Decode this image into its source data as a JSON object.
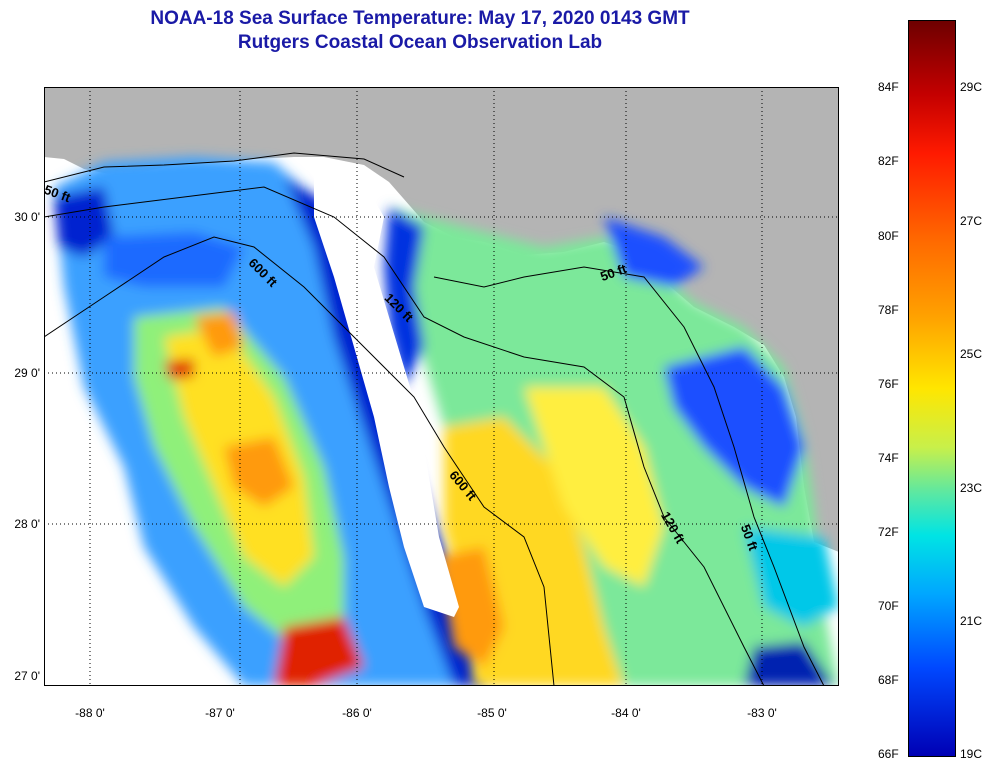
{
  "title": "NOAA-18 Sea Surface Temperature:  May 17, 2020 0143 GMT",
  "subtitle": "Rutgers Coastal Ocean Observation Lab",
  "map": {
    "lat_labels": [
      {
        "text": "30 0'",
        "value": 30
      },
      {
        "text": "29 0'",
        "value": 29
      },
      {
        "text": "28 0'",
        "value": 28
      },
      {
        "text": "27 0'",
        "value": 27
      }
    ],
    "lon_labels": [
      {
        "text": "-88 0'",
        "value": -88
      },
      {
        "text": "-87 0'",
        "value": -87
      },
      {
        "text": "-86 0'",
        "value": -86
      },
      {
        "text": "-85 0'",
        "value": -85
      },
      {
        "text": "-84 0'",
        "value": -84
      },
      {
        "text": "-83 0'",
        "value": -83
      }
    ],
    "contour_labels": [
      "50 ft",
      "600 ft",
      "120 ft",
      "50 ft",
      "600 ft",
      "120 ft",
      "50 ft"
    ],
    "colors": {
      "land": "#b4b4b4",
      "no_data": "#ffffff",
      "grid": "#000000"
    }
  },
  "colorbar": {
    "f_labels": [
      "84F",
      "82F",
      "80F",
      "78F",
      "76F",
      "74F",
      "72F",
      "70F",
      "68F",
      "66F"
    ],
    "c_labels": [
      "29C",
      "27C",
      "25C",
      "23C",
      "21C",
      "19C"
    ]
  }
}
